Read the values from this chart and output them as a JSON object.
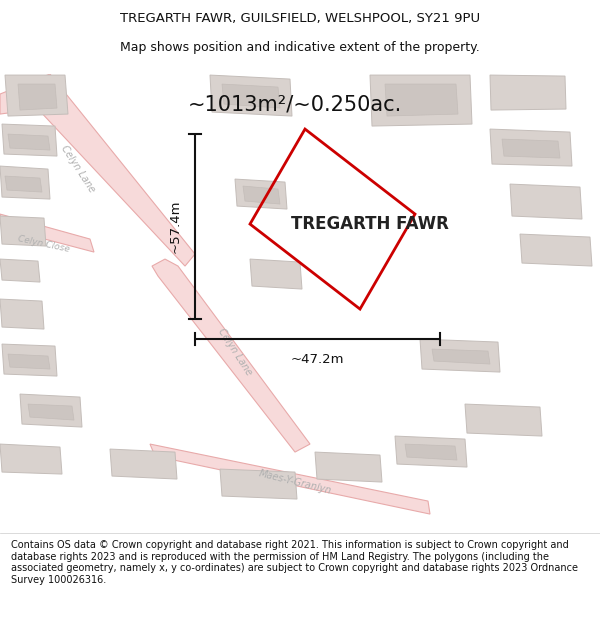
{
  "title_line1": "TREGARTH FAWR, GUILSFIELD, WELSHPOOL, SY21 9PU",
  "title_line2": "Map shows position and indicative extent of the property.",
  "property_label": "TREGARTH FAWR",
  "area_label": "~1013m²/~0.250ac.",
  "dim_vertical": "~57.4m",
  "dim_horizontal": "~47.2m",
  "footer_text": "Contains OS data © Crown copyright and database right 2021. This information is subject to Crown copyright and database rights 2023 and is reproduced with the permission of HM Land Registry. The polygons (including the associated geometry, namely x, y co-ordinates) are subject to Crown copyright and database rights 2023 Ordnance Survey 100026316.",
  "map_bg": "#f2eeeb",
  "road_stroke": "#e8aaaa",
  "road_fill": "#f7dada",
  "building_fill": "#d9d2ce",
  "building_stroke": "#c4bdb9",
  "building_inner": "#ccc5c1",
  "property_color": "#cc0000",
  "dim_color": "#111111",
  "label_color": "#aaaaaa",
  "title_color": "#111111",
  "footer_color": "#111111",
  "area_color": "#111111",
  "prop_name_color": "#222222",
  "white": "#ffffff"
}
